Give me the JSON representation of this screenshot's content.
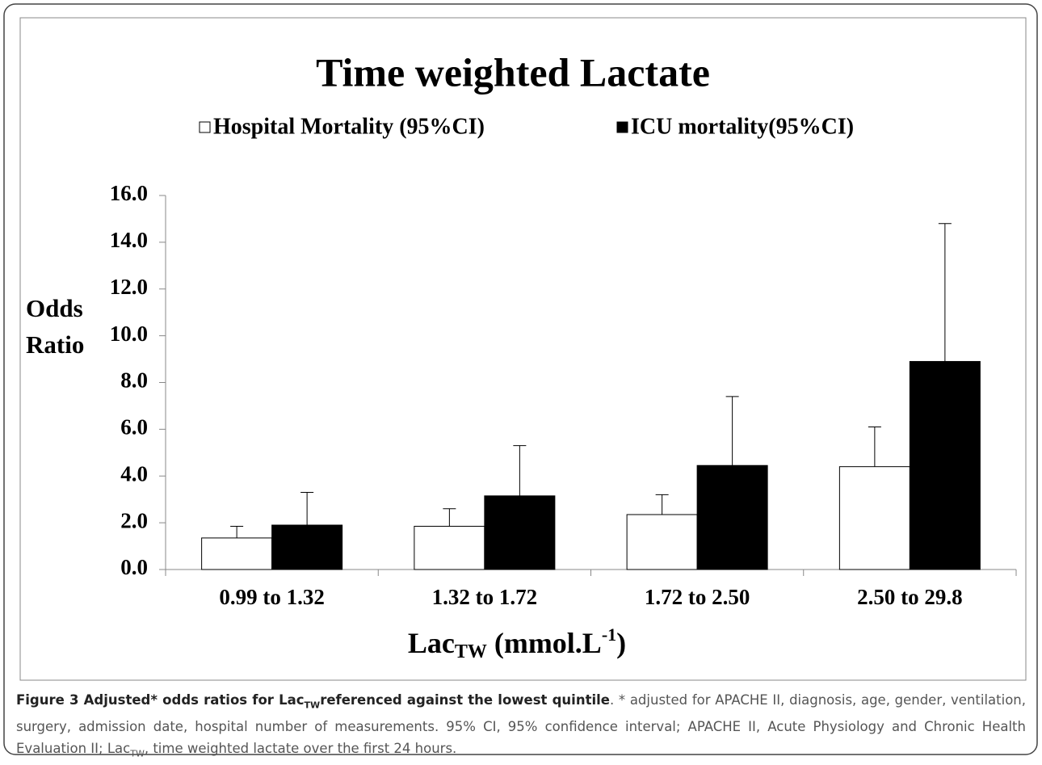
{
  "chart_data": {
    "type": "bar",
    "title": "Time weighted Lactate",
    "ylabel": [
      "Odds",
      "Ratio"
    ],
    "xlabel": {
      "base": "Lac",
      "sub": "TW",
      "mid": " (mmol.L",
      "sup": "-1",
      "end": ")"
    },
    "categories": [
      "0.99 to 1.32",
      "1.32 to 1.72",
      "1.72 to 2.50",
      "2.50 to 29.8"
    ],
    "series": [
      {
        "name": "Hospital Mortality (95%CI)",
        "color": "#ffffff",
        "values": [
          1.35,
          1.85,
          2.35,
          4.4
        ],
        "upper": [
          1.85,
          2.6,
          3.2,
          6.1
        ]
      },
      {
        "name": "ICU mortality(95%CI)",
        "color": "#000000",
        "values": [
          1.9,
          3.15,
          4.45,
          8.9
        ],
        "upper": [
          3.3,
          5.3,
          7.4,
          14.8
        ]
      }
    ],
    "ylim": [
      0,
      16
    ],
    "yticks": [
      {
        "value": 0,
        "label": "0.0"
      },
      {
        "value": 2,
        "label": "2.0"
      },
      {
        "value": 4,
        "label": "4.0"
      },
      {
        "value": 6,
        "label": "6.0"
      },
      {
        "value": 8,
        "label": "8.0"
      },
      {
        "value": 10,
        "label": "10.0"
      },
      {
        "value": 12,
        "label": "12.0"
      },
      {
        "value": 14,
        "label": "14.0"
      },
      {
        "value": 16,
        "label": "16.0"
      }
    ],
    "grid": false,
    "legend": "top"
  },
  "caption": {
    "label": "Figure 3",
    "title_a": " Adjusted* odds ratios for Lac",
    "title_sub": "TW",
    "title_b": "referenced against the lowest quintile",
    "text_a": ". * adjusted for APACHE II, diagnosis, age, gender, ventilation, surgery, admission date, hospital number of measurements. 95% CI, 95% confidence interval; APACHE II, Acute Physiology and Chronic Health Evaluation II; Lac",
    "text_sub": "TW",
    "text_b": ", time weighted lactate over the first 24 hours."
  }
}
